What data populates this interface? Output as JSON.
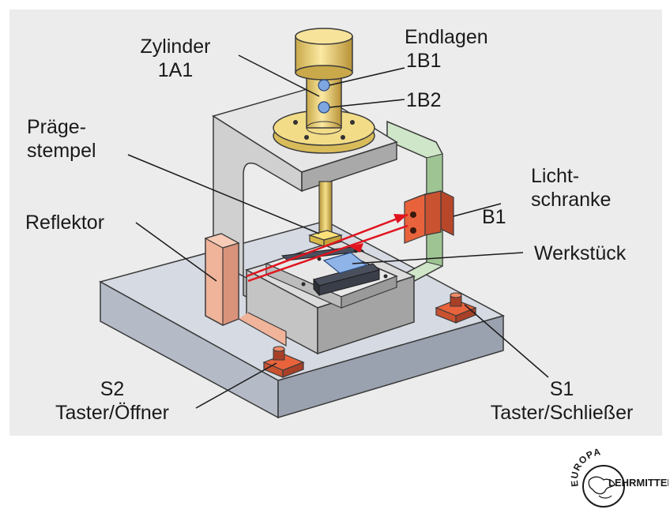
{
  "labels": {
    "zylinder": "Zylinder",
    "zylinder_id": "1A1",
    "endlagen": "Endlagen",
    "b1_endlage": "1B1",
    "b2_endlage": "1B2",
    "praege_1": "Präge-",
    "praege_2": "stempel",
    "licht_1": "Licht-",
    "licht_2": "schranke",
    "lichtschranke_id": "B1",
    "reflektor": "Reflektor",
    "werkstueck": "Werkstück",
    "s2_id": "S2",
    "s2_name": "Taster/Öffner",
    "s1_id": "S1",
    "s1_name": "Taster/Schließer"
  },
  "logo": {
    "top": "EUROPA",
    "bottom": "LEHRMITTEL"
  },
  "colors": {
    "background": "#ececec",
    "frame": "#c8c8c8",
    "base": "#c6cbd6",
    "cylinder": "#eed878",
    "reflector": "#f0b49a",
    "light_barrier": "#e8633c",
    "bracket": "#cfe6c8",
    "beam": "#e0141e",
    "sensor_dot": "#7ea6e0"
  }
}
